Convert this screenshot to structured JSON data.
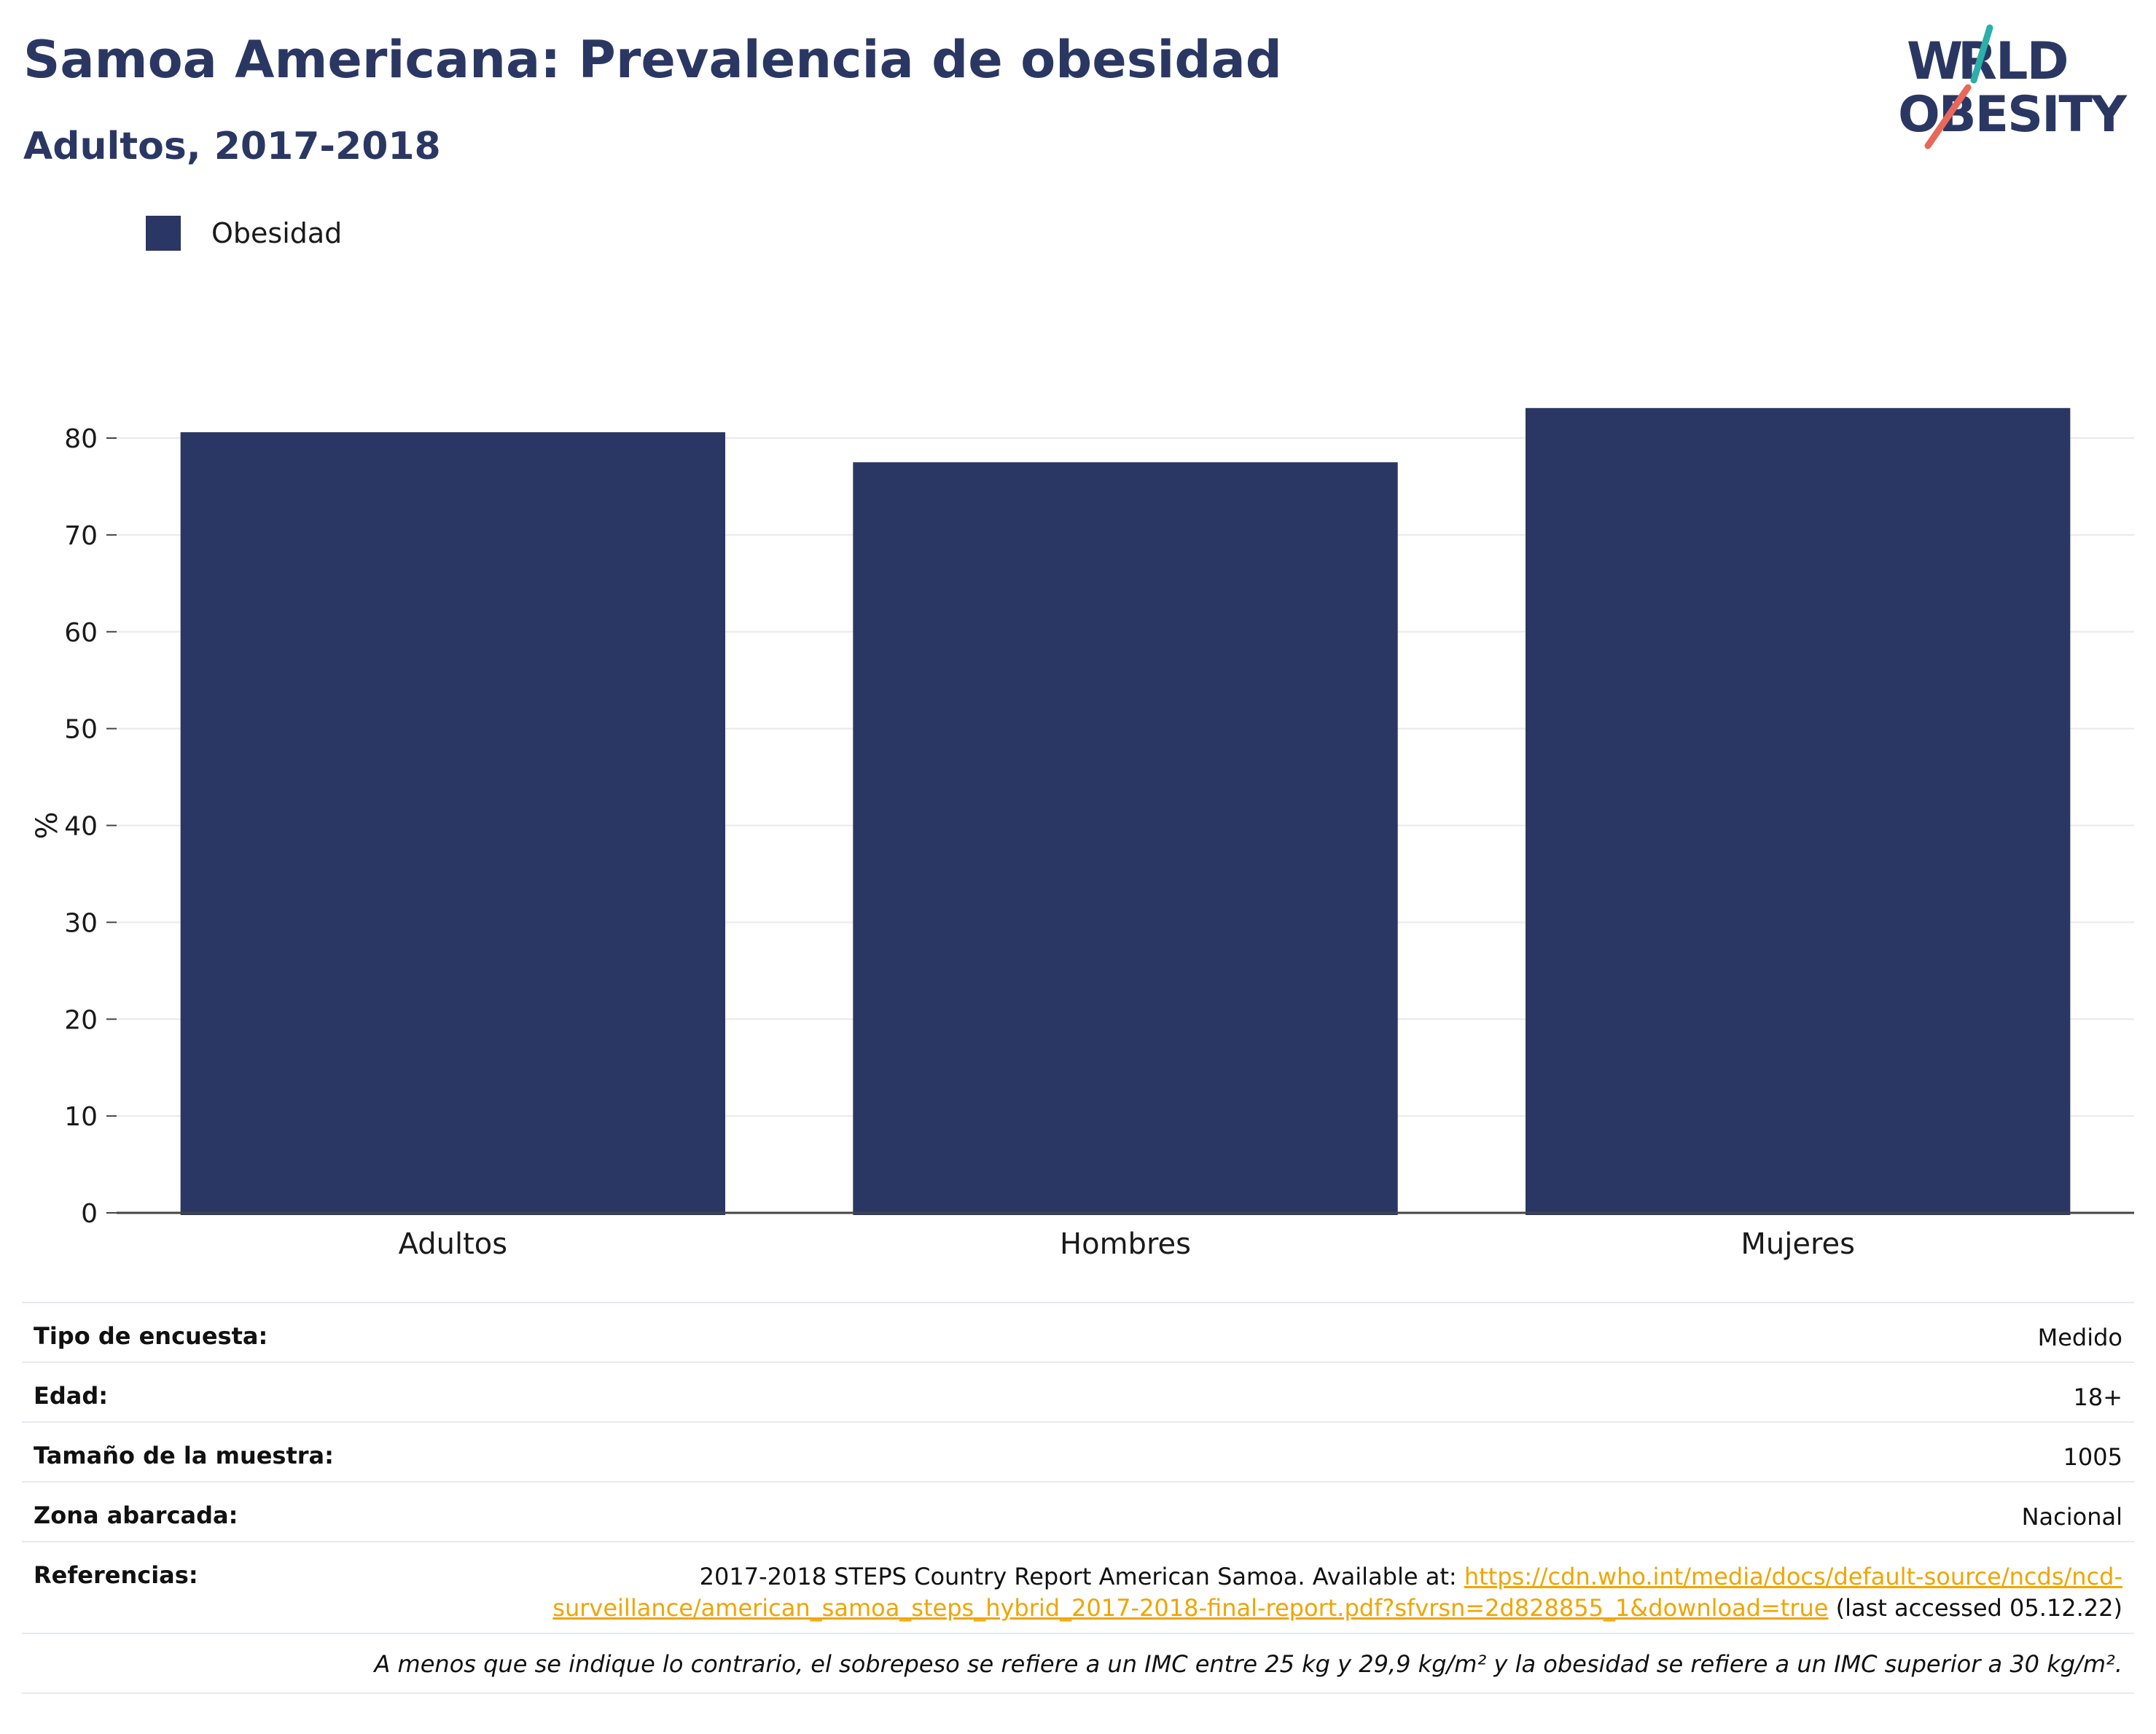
{
  "title": "Samoa Americana: Prevalencia de obesidad",
  "subtitle": "Adultos, 2017-2018",
  "logo": {
    "line1": "WORLD",
    "line2": "OBESITY"
  },
  "legend": {
    "label": "Obesidad",
    "color": "#2a3663"
  },
  "chart_data": {
    "type": "bar",
    "categories": [
      "Adultos",
      "Hombres",
      "Mujeres"
    ],
    "series": [
      {
        "name": "Obesidad",
        "values": [
          80.6,
          77.5,
          83.1
        ]
      }
    ],
    "ylabel": "%",
    "xlabel": "",
    "ylim": [
      0,
      80
    ],
    "yticks": [
      0,
      10,
      20,
      30,
      40,
      50,
      60,
      70,
      80
    ],
    "grid": true,
    "legend_position": "top-left",
    "bar_color": "#2a3663"
  },
  "info": {
    "survey_type": {
      "label": "Tipo de encuesta:",
      "value": "Medido"
    },
    "age": {
      "label": "Edad:",
      "value": "18+"
    },
    "sample_size": {
      "label": "Tamaño de la muestra:",
      "value": "1005"
    },
    "area": {
      "label": "Zona abarcada:",
      "value": "Nacional"
    },
    "references": {
      "label": "Referencias:",
      "text_before": "2017-2018 STEPS Country Report American Samoa. Available at: ",
      "link": "https://cdn.who.int/media/docs/default-source/ncds/ncd-surveillance/american_samoa_steps_hybrid_2017-2018-final-report.pdf?sfvrsn=2d828855_1&download=true",
      "text_after": " (last accessed 05.12.22)"
    },
    "note": "A menos que se indique lo contrario, el sobrepeso se refiere a un IMC entre 25 kg y 29,9 kg/m² y la obesidad se refiere a un IMC superior a 30 kg/m²."
  }
}
